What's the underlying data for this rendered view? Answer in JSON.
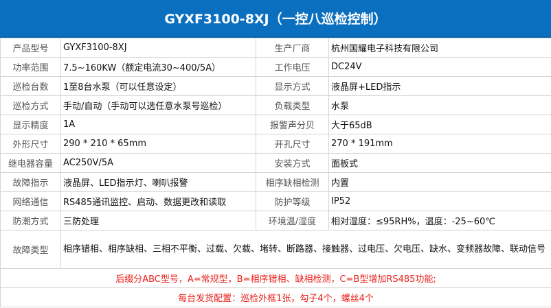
{
  "title": "GYXF3100-8XJ（一控八巡检控制）",
  "rows": [
    {
      "l1": "产品型号",
      "v1": "GYXF3100-8XJ",
      "l2": "生产厂商",
      "v2": "杭州国耀电子科技有限公司"
    },
    {
      "l1": "功率范围",
      "v1": "7.5~160KW（额定电流30~400/5A）",
      "l2": "工作电压",
      "v2": "DC24V"
    },
    {
      "l1": "巡检台数",
      "v1": "1至8台水泵（可以任意设定）",
      "l2": "显示方式",
      "v2": "液晶屏+LED指示"
    },
    {
      "l1": "巡检方式",
      "v1": "手动/自动（手动可以选任意水泵号巡检）",
      "l2": "负载类型",
      "v2": "水泵"
    },
    {
      "l1": "显示精度",
      "v1": "1A",
      "l2": "报警声分贝",
      "v2": "大于65dB"
    },
    {
      "l1": "外形尺寸",
      "v1": "290 * 210 * 65mm",
      "l2": "开孔尺寸",
      "v2": "270 * 191mm"
    },
    {
      "l1": "继电器容量",
      "v1": "AC250V/5A",
      "l2": "安装方式",
      "v2": "面板式"
    },
    {
      "l1": "故障指示",
      "v1": "液晶屏、LED指示灯、喇叭报警",
      "l2": "相序缺相检测",
      "v2": "内置"
    },
    {
      "l1": "网络通信",
      "v1": "RS485通讯监控、启动、数据更改和读取",
      "l2": "防护等级",
      "v2": "IP52"
    },
    {
      "l1": "防潮方式",
      "v1": "三防处理",
      "l2": "环境温/湿度",
      "v2": "相对湿度：≤95RH%，温度：-25~60℃"
    }
  ],
  "fault": {
    "label": "故障类型",
    "value": "相序错相、相序缺相、三相不平衡、过载、欠载、堵转、断路器、接触器、过电压、欠电压、缺水、变频器故障、联动信号"
  },
  "notes": [
    "后缀分ABC型号，A=常规型，B=相序错相、缺相检测，C=B型增加RS485功能;",
    "每台发货配置：巡检外框1张，勾子4个，螺丝4个"
  ],
  "colors": {
    "header": "#0b6fc0",
    "note": "#e8201a"
  }
}
